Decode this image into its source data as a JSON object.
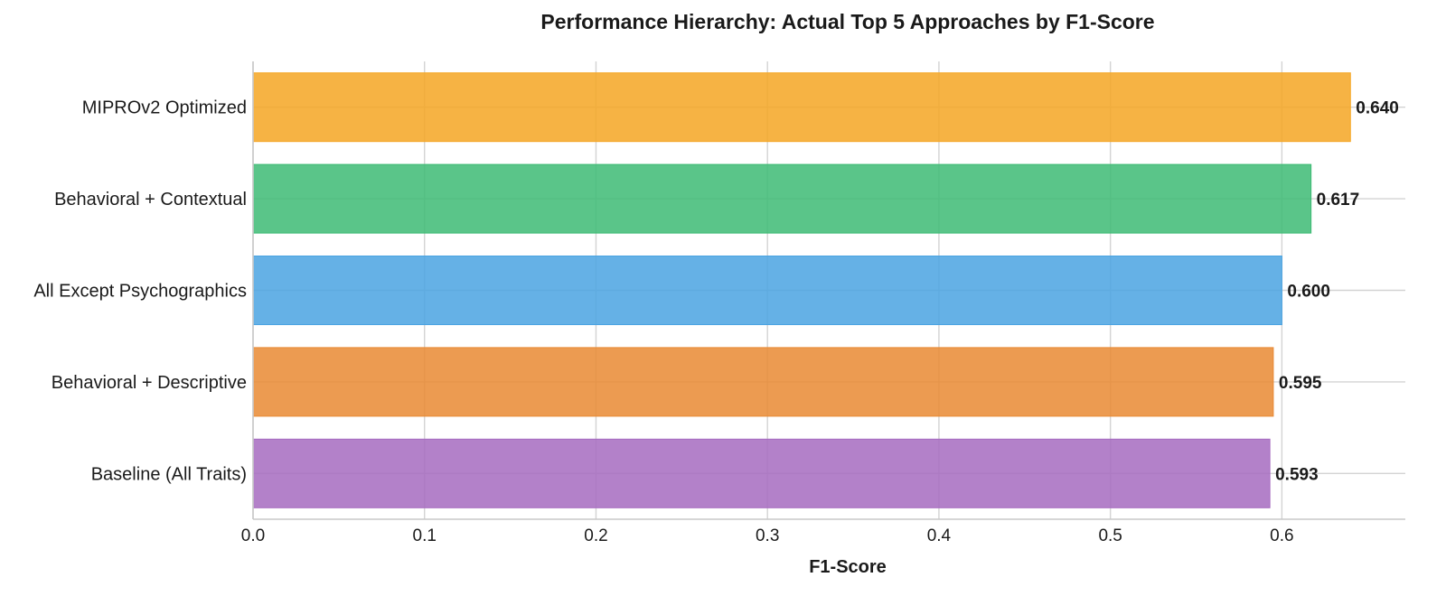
{
  "chart_data": {
    "type": "bar",
    "orientation": "horizontal",
    "title": "Performance Hierarchy: Actual Top 5 Approaches by F1-Score",
    "xlabel": "F1-Score",
    "ylabel": "",
    "categories": [
      "MIPROv2 Optimized",
      "Behavioral + Contextual",
      "All Except Psychographics",
      "Behavioral + Descriptive",
      "Baseline (All Traits)"
    ],
    "values": [
      0.64,
      0.617,
      0.6,
      0.595,
      0.593
    ],
    "value_labels": [
      "0.640",
      "0.617",
      "0.600",
      "0.595",
      "0.593"
    ],
    "colors": [
      "#F5A623",
      "#3DBB74",
      "#4AA3E2",
      "#E98A33",
      "#A66BC0"
    ],
    "xlim": [
      0,
      0.672
    ],
    "xticks": [
      0.0,
      0.1,
      0.2,
      0.3,
      0.4,
      0.5,
      0.6
    ],
    "xtick_labels": [
      "0.0",
      "0.1",
      "0.2",
      "0.3",
      "0.4",
      "0.5",
      "0.6"
    ],
    "grid": true,
    "legend": "none"
  }
}
